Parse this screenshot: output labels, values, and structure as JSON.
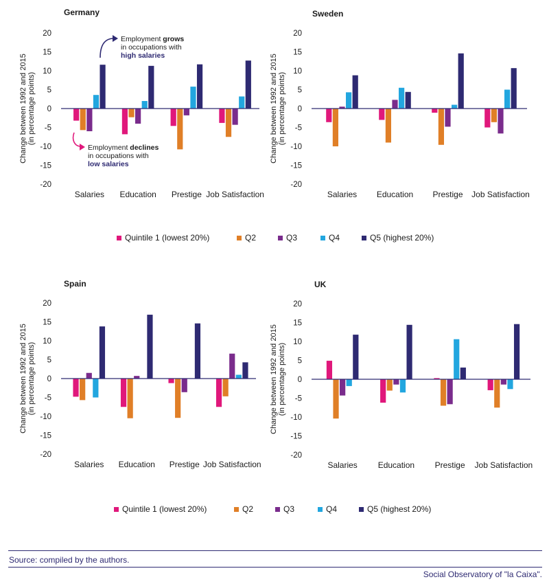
{
  "colors": {
    "q1": "#e0187b",
    "q2": "#e07f27",
    "q3": "#7a2c8c",
    "q4": "#22a6df",
    "q5": "#2e2a72",
    "text": "#1a1a1a",
    "footer": "#2e2a72"
  },
  "legend": {
    "q1": "Quintile 1 (lowest 20%)",
    "q2": "Q2",
    "q3": "Q3",
    "q4": "Q4",
    "q5": "Q5 (highest 20%)"
  },
  "annotations": {
    "grows_prefix": "Employment ",
    "grows_bold": "grows",
    "grows_line2": "in occupations with",
    "grows_line3": "high salaries",
    "declines_prefix": "Employment ",
    "declines_bold": "declines",
    "declines_line2": "in occupations with",
    "declines_line3": "low salaries"
  },
  "footer": {
    "source": "Source: compiled by the authors.",
    "credit": "Social Observatory of \"la Caixa\"."
  },
  "chart_data": [
    {
      "type": "bar",
      "title": "Germany",
      "ylabel": "Change between 1992 and 2015 (in percentage points)",
      "ylabel_lines": [
        "Change between 1992 and 2015",
        "(in percentage points)"
      ],
      "ylim": [
        -20,
        20
      ],
      "yticks": [
        20,
        15,
        10,
        5,
        0,
        -5,
        -10,
        -15,
        -20
      ],
      "categories": [
        "Salaries",
        "Education",
        "Prestige",
        "Job Satisfaction"
      ],
      "series": [
        {
          "name": "Quintile 1 (lowest 20%)",
          "values": [
            -3.2,
            -6.8,
            -4.6,
            -3.8
          ]
        },
        {
          "name": "Q2",
          "values": [
            -5.7,
            -2.3,
            -10.8,
            -7.5
          ]
        },
        {
          "name": "Q3",
          "values": [
            -6.0,
            -4.0,
            -1.8,
            -4.3
          ]
        },
        {
          "name": "Q4",
          "values": [
            3.6,
            2.0,
            5.8,
            3.2
          ]
        },
        {
          "name": "Q5 (highest 20%)",
          "values": [
            11.6,
            11.3,
            11.7,
            12.7
          ]
        }
      ]
    },
    {
      "type": "bar",
      "title": "Sweden",
      "ylabel": "Change between 1992 and 2015 (in percentage points)",
      "ylabel_lines": [
        "Change between 1992 and 2015",
        "(in percentage points)"
      ],
      "ylim": [
        -20,
        20
      ],
      "yticks": [
        20,
        15,
        10,
        5,
        0,
        -5,
        -10,
        -15,
        -20
      ],
      "categories": [
        "Salaries",
        "Education",
        "Prestige",
        "Job Satisfaction"
      ],
      "series": [
        {
          "name": "Quintile 1 (lowest 20%)",
          "values": [
            -3.6,
            -3.0,
            -1.1,
            -5.0
          ]
        },
        {
          "name": "Q2",
          "values": [
            -10.0,
            -9.0,
            -9.6,
            -3.6
          ]
        },
        {
          "name": "Q3",
          "values": [
            0.5,
            2.3,
            -4.8,
            -6.6
          ]
        },
        {
          "name": "Q4",
          "values": [
            4.3,
            5.5,
            1.0,
            5.0
          ]
        },
        {
          "name": "Q5 (highest 20%)",
          "values": [
            8.8,
            4.4,
            14.6,
            10.7
          ]
        }
      ]
    },
    {
      "type": "bar",
      "title": "Spain",
      "ylabel": "Change between 1992 and 2015 (in percentage points)",
      "ylabel_lines": [
        "Change between 1992 and 2015",
        "(in percentage points)"
      ],
      "ylim": [
        -20,
        20
      ],
      "yticks": [
        20,
        15,
        10,
        5,
        0,
        -5,
        -10,
        -15,
        -20
      ],
      "categories": [
        "Salaries",
        "Education",
        "Prestige",
        "Job Satisfaction"
      ],
      "series": [
        {
          "name": "Quintile 1 (lowest 20%)",
          "values": [
            -4.8,
            -7.5,
            -1.2,
            -7.5
          ]
        },
        {
          "name": "Q2",
          "values": [
            -5.7,
            -10.5,
            -10.4,
            -4.7
          ]
        },
        {
          "name": "Q3",
          "values": [
            1.5,
            0.7,
            -3.6,
            6.6
          ]
        },
        {
          "name": "Q4",
          "values": [
            -5.0,
            0,
            0,
            1.0
          ]
        },
        {
          "name": "Q5 (highest 20%)",
          "values": [
            13.8,
            16.9,
            14.6,
            4.3
          ]
        }
      ]
    },
    {
      "type": "bar",
      "title": "UK",
      "ylabel": "Change between 1992 and 2015 (in percentage points)",
      "ylabel_lines": [
        "Change between 1992 and 2015",
        "(in percentage points)"
      ],
      "ylim": [
        -20,
        20
      ],
      "yticks": [
        20,
        15,
        10,
        5,
        0,
        -5,
        -10,
        -15,
        -20
      ],
      "categories": [
        "Salaries",
        "Education",
        "Prestige",
        "Job Satisfaction"
      ],
      "series": [
        {
          "name": "Quintile 1 (lowest 20%)",
          "values": [
            4.9,
            -6.2,
            0.3,
            -2.9
          ]
        },
        {
          "name": "Q2",
          "values": [
            -10.4,
            -3.0,
            -7.0,
            -7.5
          ]
        },
        {
          "name": "Q3",
          "values": [
            -4.3,
            -1.4,
            -6.6,
            -1.4
          ]
        },
        {
          "name": "Q4",
          "values": [
            -1.8,
            -3.5,
            10.6,
            -2.6
          ]
        },
        {
          "name": "Q5 (highest 20%)",
          "values": [
            11.8,
            14.4,
            3.1,
            14.6
          ]
        }
      ]
    }
  ]
}
